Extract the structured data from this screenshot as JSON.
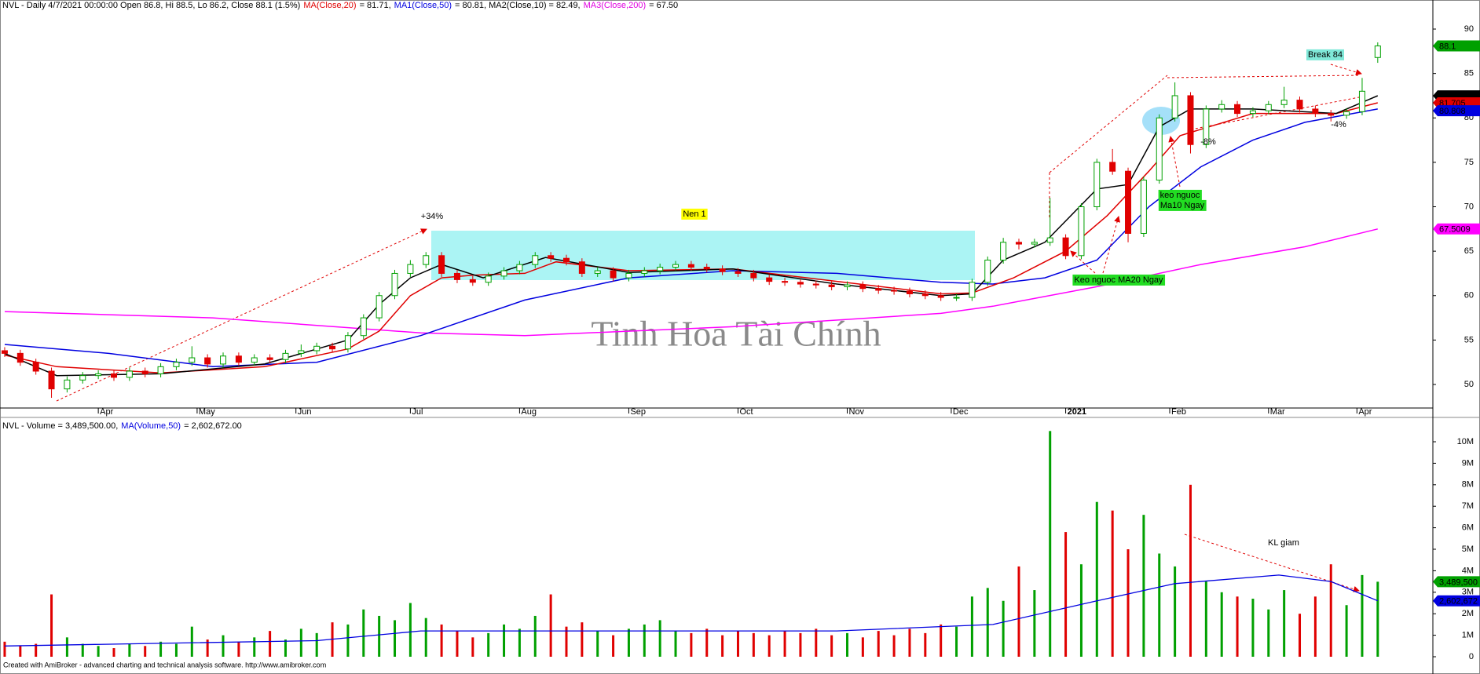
{
  "chart_data": [
    {
      "type": "candlestick",
      "header": [
        "NVL - Daily 4/7/2021 00:00:00 Open 86.8, Hi 88.5, Lo 86.2, Close 88.1 (1.5%)",
        "MA(Close,20)",
        "= 81.71,",
        "MA1(Close,50)",
        "= 80.81, MA2(Close,10) = 82.49,",
        "MA3(Close,200)",
        "= 67.50"
      ],
      "header_colors": [
        "#000000",
        "#e00000",
        "#000000",
        "#0000e0",
        "#000000",
        "#e000e0",
        "#000000"
      ],
      "x": [
        0,
        3,
        6,
        9,
        12,
        15,
        18,
        21,
        24,
        27,
        30,
        33,
        36,
        39,
        42,
        45,
        48,
        51,
        54,
        57,
        60,
        63,
        66,
        69,
        72,
        75,
        78,
        81,
        84,
        87,
        90,
        93,
        96,
        99,
        102,
        105,
        108,
        111,
        114,
        117,
        120,
        123,
        126,
        129,
        132,
        135,
        138,
        141,
        144,
        147,
        150,
        153,
        156,
        159,
        162,
        165,
        168,
        171,
        174,
        177,
        180,
        183,
        186,
        189,
        192,
        195,
        198,
        201,
        204,
        207,
        210,
        213,
        216,
        219,
        222,
        225,
        228,
        231,
        234,
        237,
        240,
        243,
        246,
        249,
        252,
        255,
        258,
        261,
        264
      ],
      "open": [
        53.8,
        53.5,
        52.5,
        51.5,
        49.5,
        50.5,
        51,
        51.2,
        50.8,
        51.5,
        51.2,
        52,
        52.5,
        53,
        52.3,
        53.2,
        52.5,
        53,
        52.8,
        53.5,
        53.8,
        54.3,
        54,
        55.5,
        57.5,
        60,
        62.5,
        63.5,
        64.5,
        62.5,
        61.8,
        61.5,
        62.2,
        62.8,
        63.5,
        64.5,
        64.2,
        63.8,
        62.5,
        62.8,
        62,
        62.5,
        62.8,
        63.2,
        63.5,
        63.2,
        63,
        62.7,
        62.5,
        62,
        61.6,
        61.5,
        61.3,
        61.2,
        61,
        61.2,
        60.8,
        60.6,
        60.5,
        60.2,
        60,
        59.8,
        59.8,
        61.5,
        64,
        66,
        65.8,
        66,
        66.5,
        64.5,
        70,
        75,
        74,
        67,
        73,
        80,
        82.5,
        77,
        81,
        81.5,
        80.5,
        80.8,
        81.5,
        82,
        81,
        80.5,
        80.3,
        80.7,
        86.8
      ],
      "high": [
        54.2,
        53.9,
        52.9,
        51.9,
        50.9,
        51.4,
        51.6,
        51.6,
        51.9,
        51.9,
        52.4,
        52.9,
        54.3,
        53.4,
        53.6,
        53.6,
        53.4,
        53.4,
        53.9,
        54.5,
        54.7,
        54.7,
        55.9,
        57.9,
        60.4,
        62.9,
        64,
        64.9,
        64.9,
        62.9,
        62.2,
        62.6,
        63.2,
        63.9,
        64.9,
        64.9,
        64.6,
        64.2,
        63.2,
        63.2,
        62.9,
        63.2,
        63.6,
        63.9,
        63.9,
        63.6,
        63.4,
        63.1,
        62.9,
        62.4,
        62,
        61.9,
        61.7,
        61.6,
        61.6,
        61.6,
        61.2,
        61,
        60.9,
        60.6,
        60.4,
        60.2,
        61.9,
        64.4,
        66.5,
        66.4,
        66.4,
        71,
        66.9,
        70.4,
        75.4,
        76.5,
        74.4,
        73.4,
        80.4,
        84,
        82.9,
        81.4,
        82,
        81.9,
        81.2,
        81.9,
        83.5,
        82.4,
        81.4,
        80.9,
        81.1,
        84.5,
        88.5
      ],
      "low": [
        53.1,
        52.1,
        51.1,
        48.5,
        49.1,
        50.1,
        50.6,
        50.4,
        50.4,
        50.8,
        50.8,
        51.6,
        52.1,
        51.9,
        51.9,
        52.1,
        52.1,
        52.4,
        52.4,
        53.1,
        53.4,
        53.6,
        53.6,
        55.1,
        57.1,
        59.6,
        62.1,
        63.1,
        62.1,
        61.4,
        61.1,
        61.1,
        61.8,
        62.4,
        63.1,
        63.8,
        63.4,
        62.1,
        62.1,
        61.6,
        61.6,
        62.1,
        62.4,
        62.8,
        62.8,
        62.6,
        62.3,
        62.1,
        61.6,
        61.2,
        61.1,
        60.9,
        60.8,
        60.6,
        60.6,
        60.4,
        60.2,
        60.1,
        59.8,
        59.6,
        59.4,
        59.4,
        59.4,
        61.1,
        63.6,
        65.2,
        65.4,
        65.6,
        64.1,
        64.1,
        69.6,
        73.6,
        66,
        66.6,
        72.6,
        79.6,
        76,
        76.6,
        80.6,
        80.1,
        80.1,
        80.4,
        81.1,
        80.6,
        80.1,
        79.6,
        79.9,
        80.3,
        86.2
      ],
      "close": [
        53.5,
        52.5,
        51.5,
        49.5,
        50.5,
        51,
        51.2,
        50.8,
        51.5,
        51.2,
        52,
        52.5,
        53,
        52.3,
        53.2,
        52.5,
        53,
        52.8,
        53.5,
        53.8,
        54.3,
        54,
        55.5,
        57.5,
        60,
        62.5,
        63.5,
        64.5,
        62.5,
        61.8,
        61.5,
        62.2,
        62.8,
        63.5,
        64.5,
        64.2,
        63.8,
        62.5,
        62.8,
        62,
        62.5,
        62.8,
        63.2,
        63.5,
        63.2,
        63,
        62.7,
        62.5,
        62,
        61.6,
        61.5,
        61.3,
        61.2,
        61,
        61.2,
        60.8,
        60.6,
        60.5,
        60.2,
        60,
        59.8,
        59.8,
        61.5,
        64,
        66,
        65.8,
        66,
        66.5,
        64.5,
        70,
        75,
        74,
        67,
        73,
        80,
        82.5,
        77,
        81,
        81.5,
        80.5,
        80.8,
        81.5,
        82,
        81,
        80.5,
        80.3,
        80.7,
        83,
        88.1
      ],
      "up_color": "#00a000",
      "down_color": "#e00000",
      "lines": [
        {
          "color": "#ff00ff",
          "x": [
            0,
            40,
            80,
            100,
            140,
            180,
            190,
            210,
            230,
            250,
            264
          ],
          "values": [
            58.2,
            57.5,
            55.8,
            55.5,
            56.5,
            58,
            58.8,
            61,
            63.5,
            65.5,
            67.5
          ]
        },
        {
          "color": "#0000e0",
          "x": [
            0,
            20,
            40,
            60,
            80,
            100,
            120,
            140,
            160,
            180,
            190,
            200,
            210,
            220,
            230,
            240,
            250,
            264
          ],
          "values": [
            54.5,
            53.5,
            52,
            52.5,
            55.5,
            59.5,
            62,
            62.8,
            62.5,
            61.5,
            61.3,
            62,
            64,
            70,
            74.5,
            77.5,
            79.5,
            81
          ]
        },
        {
          "color": "#e00000",
          "x": [
            0,
            10,
            30,
            50,
            66,
            72,
            78,
            84,
            90,
            100,
            106,
            120,
            140,
            160,
            180,
            186,
            194,
            204,
            212,
            220,
            226,
            240,
            256,
            264
          ],
          "values": [
            53.3,
            52,
            51.3,
            52,
            54,
            56,
            60,
            62,
            62.3,
            62.5,
            63.8,
            62.8,
            63,
            61.6,
            60.2,
            60.3,
            62,
            65,
            69,
            74,
            78,
            80.5,
            80.5,
            81.7
          ]
        },
        {
          "color": "#000000",
          "x": [
            0,
            10,
            30,
            50,
            66,
            72,
            78,
            84,
            92,
            104,
            120,
            140,
            160,
            180,
            186,
            192,
            200,
            210,
            216,
            222,
            228,
            240,
            256,
            264
          ],
          "values": [
            53.5,
            51,
            51.2,
            52.3,
            55,
            59,
            62,
            63.5,
            62,
            64.3,
            62.6,
            63,
            61.3,
            60,
            60.2,
            64,
            66,
            72,
            72.5,
            79,
            81,
            81,
            80.5,
            82.5
          ]
        }
      ],
      "flags": {
        "values": [
          88.1,
          82.49,
          81.705,
          80.808,
          67.5009
        ],
        "colors": [
          "#00a000",
          "#000000",
          "#e00000",
          "#0000e0",
          "#ff00ff"
        ]
      },
      "xlim": [
        -0.9,
        274.6
      ],
      "xticks": [
        {
          "value": 18,
          "label": "Apr"
        },
        {
          "value": 37,
          "label": "May"
        },
        {
          "value": 56,
          "label": "Jun"
        },
        {
          "value": 78,
          "label": "Jul"
        },
        {
          "value": 99,
          "label": "Aug"
        },
        {
          "value": 120,
          "label": "Sep"
        },
        {
          "value": 141,
          "label": "Oct"
        },
        {
          "value": 162,
          "label": "Nov"
        },
        {
          "value": 182,
          "label": "Dec"
        },
        {
          "value": 204,
          "label": "2021"
        },
        {
          "value": 224,
          "label": "Feb"
        },
        {
          "value": 243,
          "label": "Mar"
        },
        {
          "value": 260,
          "label": "Apr"
        }
      ],
      "ylim": [
        47.35,
        93.27
      ],
      "yticks": [
        50,
        55,
        60,
        65,
        70,
        75,
        80,
        85,
        90
      ],
      "annotations": [
        "+34%",
        "Nen 1",
        "Keo nguoc MA20 Ngay",
        "keo nguoc",
        "Ma10 Ngay",
        "-8%",
        "-4%",
        "Break 84"
      ],
      "watermark": "Tinh Hoa Tài Chính"
    },
    {
      "type": "volume",
      "header": [
        "NVL - Volume = 3,489,500.00,",
        "MA(Volume,50)",
        "= 2,602,672.00"
      ],
      "header_colors": [
        "#000000",
        "#0000e0",
        "#000000"
      ],
      "values": [
        700000,
        500000,
        600000,
        2900000,
        900000,
        600000,
        500000,
        400000,
        600000,
        500000,
        700000,
        600000,
        1400000,
        800000,
        1000000,
        700000,
        900000,
        1200000,
        800000,
        1300000,
        1100000,
        1600000,
        1500000,
        2200000,
        1900000,
        1700000,
        2500000,
        1800000,
        1500000,
        1200000,
        900000,
        1100000,
        1500000,
        1300000,
        1900000,
        2900000,
        1400000,
        1600000,
        1200000,
        1000000,
        1300000,
        1500000,
        1700000,
        1200000,
        1100000,
        1300000,
        1000000,
        1200000,
        1100000,
        1000000,
        1200000,
        1100000,
        1300000,
        1000000,
        1100000,
        900000,
        1200000,
        1000000,
        1300000,
        1100000,
        1500000,
        1400000,
        2800000,
        3200000,
        2600000,
        4200000,
        3100000,
        10500000,
        5800000,
        4300000,
        7200000,
        6800000,
        5000000,
        6600000,
        4800000,
        4200000,
        8000000,
        3500000,
        3000000,
        2800000,
        2700000,
        2200000,
        3100000,
        2000000,
        2800000,
        4300000,
        2400000,
        3800000,
        3489500
      ],
      "ma": {
        "color": "#0000e0",
        "x": [
          0,
          60,
          80,
          160,
          190,
          210,
          225,
          245,
          255,
          264
        ],
        "values": [
          500000,
          750000,
          1200000,
          1200000,
          1500000,
          2600000,
          3400000,
          3800000,
          3500000,
          2602672
        ]
      },
      "flags": {
        "values": [
          3489500,
          2602672
        ],
        "value_labels": [
          "3,489,500",
          "2,602,672"
        ],
        "colors": [
          "#00a000",
          "#0000e0"
        ]
      },
      "ylim": [
        0,
        10840000
      ],
      "yticks": [
        0,
        {
          "value": 1000000,
          "label": "1M"
        },
        {
          "value": 2000000,
          "label": "2M"
        },
        {
          "value": 3000000,
          "label": "3M"
        },
        {
          "value": 4000000,
          "label": "4M"
        },
        {
          "value": 5000000,
          "label": "5M"
        },
        {
          "value": 6000000,
          "label": "6M"
        },
        {
          "value": 7000000,
          "label": "7M"
        },
        {
          "value": 8000000,
          "label": "8M"
        },
        {
          "value": 9000000,
          "label": "9M"
        },
        {
          "value": 10000000,
          "label": "10M"
        }
      ],
      "annotations": [
        "KL giam"
      ]
    }
  ],
  "footer": "Created with AmiBroker - advanced charting and technical analysis software. http://www.amibroker.com"
}
